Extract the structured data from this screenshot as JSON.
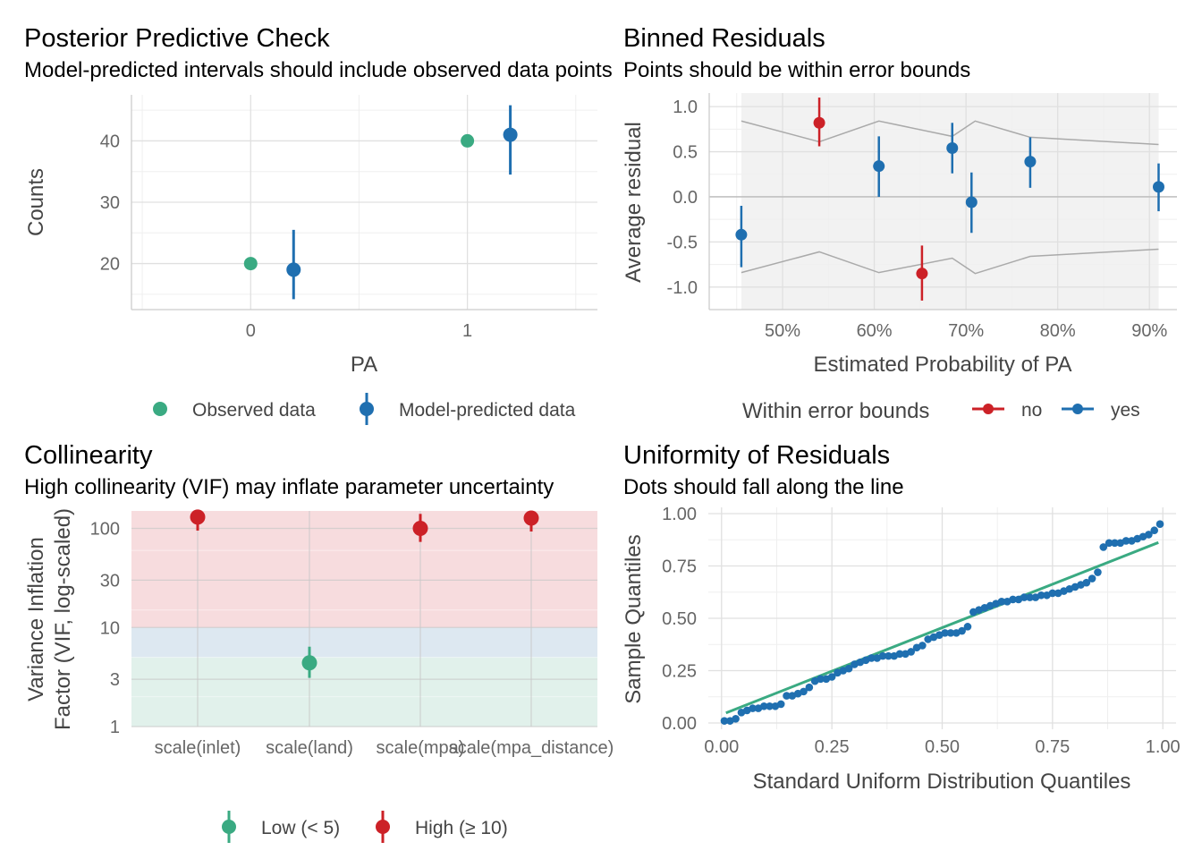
{
  "colors": {
    "green": "#3aaa82",
    "blue": "#1f6fb0",
    "red": "#cc2127",
    "grid_major": "#e0e0e0",
    "grid_minor": "#efefef",
    "band_gray": "#f2f2f2",
    "bound_line": "#aaaaaa",
    "fill_high": "#f7dcde",
    "fill_moderate": "#dde8f1",
    "fill_low": "#e1f1eb"
  },
  "chart_data": [
    {
      "id": "ppc",
      "type": "scatter",
      "title": "Posterior Predictive Check",
      "subtitle": "Model-predicted intervals should include observed data points",
      "xlabel": "PA",
      "ylabel": "Counts",
      "xlim": [
        -0.55,
        1.6
      ],
      "ylim": [
        12.5,
        47.5
      ],
      "x_ticks": [
        "0",
        "1"
      ],
      "y_ticks": [
        "20",
        "30",
        "40"
      ],
      "observed": [
        {
          "x": 0,
          "y": 20
        },
        {
          "x": 1,
          "y": 40
        }
      ],
      "predicted": [
        {
          "x": 0,
          "y": 19,
          "lo": 14.2,
          "hi": 25.5
        },
        {
          "x": 1,
          "y": 41,
          "lo": 34.5,
          "hi": 45.8
        }
      ],
      "legend": {
        "observed": "Observed data",
        "predicted": "Model-predicted data"
      }
    },
    {
      "id": "binned",
      "type": "scatter",
      "title": "Binned Residuals",
      "subtitle": "Points should be within error bounds",
      "xlabel": "Estimated Probability of PA",
      "ylabel": "Average residual",
      "xlim": [
        0.42,
        0.93
      ],
      "ylim": [
        -1.25,
        1.15
      ],
      "x_ticks": [
        "50%",
        "60%",
        "70%",
        "80%",
        "90%"
      ],
      "y_ticks": [
        "-1.0",
        "-0.5",
        "0.0",
        "0.5",
        "1.0"
      ],
      "bounds_x": [
        0.455,
        0.54,
        0.605,
        0.685,
        0.71,
        0.77,
        0.91
      ],
      "bounds_upper": [
        0.84,
        0.61,
        0.84,
        0.67,
        0.84,
        0.66,
        0.58
      ],
      "bounds_lower": [
        -0.84,
        -0.61,
        -0.84,
        -0.68,
        -0.85,
        -0.66,
        -0.58
      ],
      "points": [
        {
          "x": 0.455,
          "y": -0.42,
          "lo": -0.78,
          "hi": -0.1,
          "within": "yes"
        },
        {
          "x": 0.54,
          "y": 0.82,
          "lo": 0.56,
          "hi": 1.1,
          "within": "no"
        },
        {
          "x": 0.605,
          "y": 0.34,
          "lo": 0.0,
          "hi": 0.67,
          "within": "yes"
        },
        {
          "x": 0.652,
          "y": -0.85,
          "lo": -1.15,
          "hi": -0.54,
          "within": "no"
        },
        {
          "x": 0.685,
          "y": 0.54,
          "lo": 0.26,
          "hi": 0.82,
          "within": "yes"
        },
        {
          "x": 0.706,
          "y": -0.06,
          "lo": -0.4,
          "hi": 0.27,
          "within": "yes"
        },
        {
          "x": 0.77,
          "y": 0.39,
          "lo": 0.1,
          "hi": 0.66,
          "within": "yes"
        },
        {
          "x": 0.91,
          "y": 0.11,
          "lo": -0.16,
          "hi": 0.37,
          "within": "yes"
        }
      ],
      "legend": {
        "title": "Within error bounds",
        "no": "no",
        "yes": "yes"
      }
    },
    {
      "id": "collinearity",
      "type": "scatter",
      "title": "Collinearity",
      "subtitle": "High collinearity (VIF) may inflate parameter uncertainty",
      "ylabel_lines": [
        "Variance Inflation",
        "Factor (VIF, log-scaled)"
      ],
      "y_scale": "log",
      "ylim": [
        1,
        150
      ],
      "y_ticks": [
        1,
        3,
        10,
        30,
        100
      ],
      "categories": [
        "scale(inlet)",
        "scale(land)",
        "scale(mpa)",
        "scale(mpa_distance)"
      ],
      "points": [
        {
          "vif": 130,
          "lo": 95,
          "hi": 165,
          "level": "high"
        },
        {
          "vif": 4.4,
          "lo": 3.1,
          "hi": 6.4,
          "level": "low"
        },
        {
          "vif": 100,
          "lo": 73,
          "hi": 140,
          "level": "high"
        },
        {
          "vif": 127,
          "lo": 93,
          "hi": 160,
          "level": "high"
        }
      ],
      "zones": [
        {
          "from": 1,
          "to": 5,
          "level": "low"
        },
        {
          "from": 5,
          "to": 10,
          "level": "moderate"
        },
        {
          "from": 10,
          "to": 150,
          "level": "high"
        }
      ],
      "legend": {
        "low": "Low (< 5)",
        "high": "High (≥ 10)"
      }
    },
    {
      "id": "uniformity",
      "type": "scatter",
      "title": "Uniformity of Residuals",
      "subtitle": "Dots should fall along the line",
      "xlabel": "Standard Uniform Distribution Quantiles",
      "ylabel": "Sample Quantiles",
      "xlim": [
        -0.03,
        1.03
      ],
      "ylim": [
        -0.03,
        1.03
      ],
      "x_ticks": [
        "0.00",
        "0.25",
        "0.50",
        "0.75",
        "1.00"
      ],
      "y_ticks": [
        "0.00",
        "0.25",
        "0.50",
        "0.75",
        "1.00"
      ],
      "ref_line": {
        "x": [
          0.0,
          1.0
        ],
        "y": [
          0.04,
          0.87
        ]
      },
      "samples": [
        0.01,
        0.01,
        0.02,
        0.05,
        0.06,
        0.07,
        0.07,
        0.08,
        0.08,
        0.08,
        0.09,
        0.13,
        0.13,
        0.14,
        0.15,
        0.17,
        0.2,
        0.21,
        0.21,
        0.22,
        0.24,
        0.25,
        0.26,
        0.28,
        0.29,
        0.3,
        0.31,
        0.31,
        0.32,
        0.32,
        0.32,
        0.33,
        0.33,
        0.34,
        0.36,
        0.37,
        0.4,
        0.41,
        0.42,
        0.43,
        0.43,
        0.43,
        0.44,
        0.46,
        0.53,
        0.54,
        0.55,
        0.56,
        0.57,
        0.58,
        0.58,
        0.59,
        0.59,
        0.6,
        0.6,
        0.6,
        0.61,
        0.61,
        0.62,
        0.62,
        0.63,
        0.64,
        0.65,
        0.66,
        0.67,
        0.69,
        0.72,
        0.84,
        0.86,
        0.86,
        0.86,
        0.87,
        0.87,
        0.88,
        0.89,
        0.9,
        0.92,
        0.95
      ]
    }
  ]
}
